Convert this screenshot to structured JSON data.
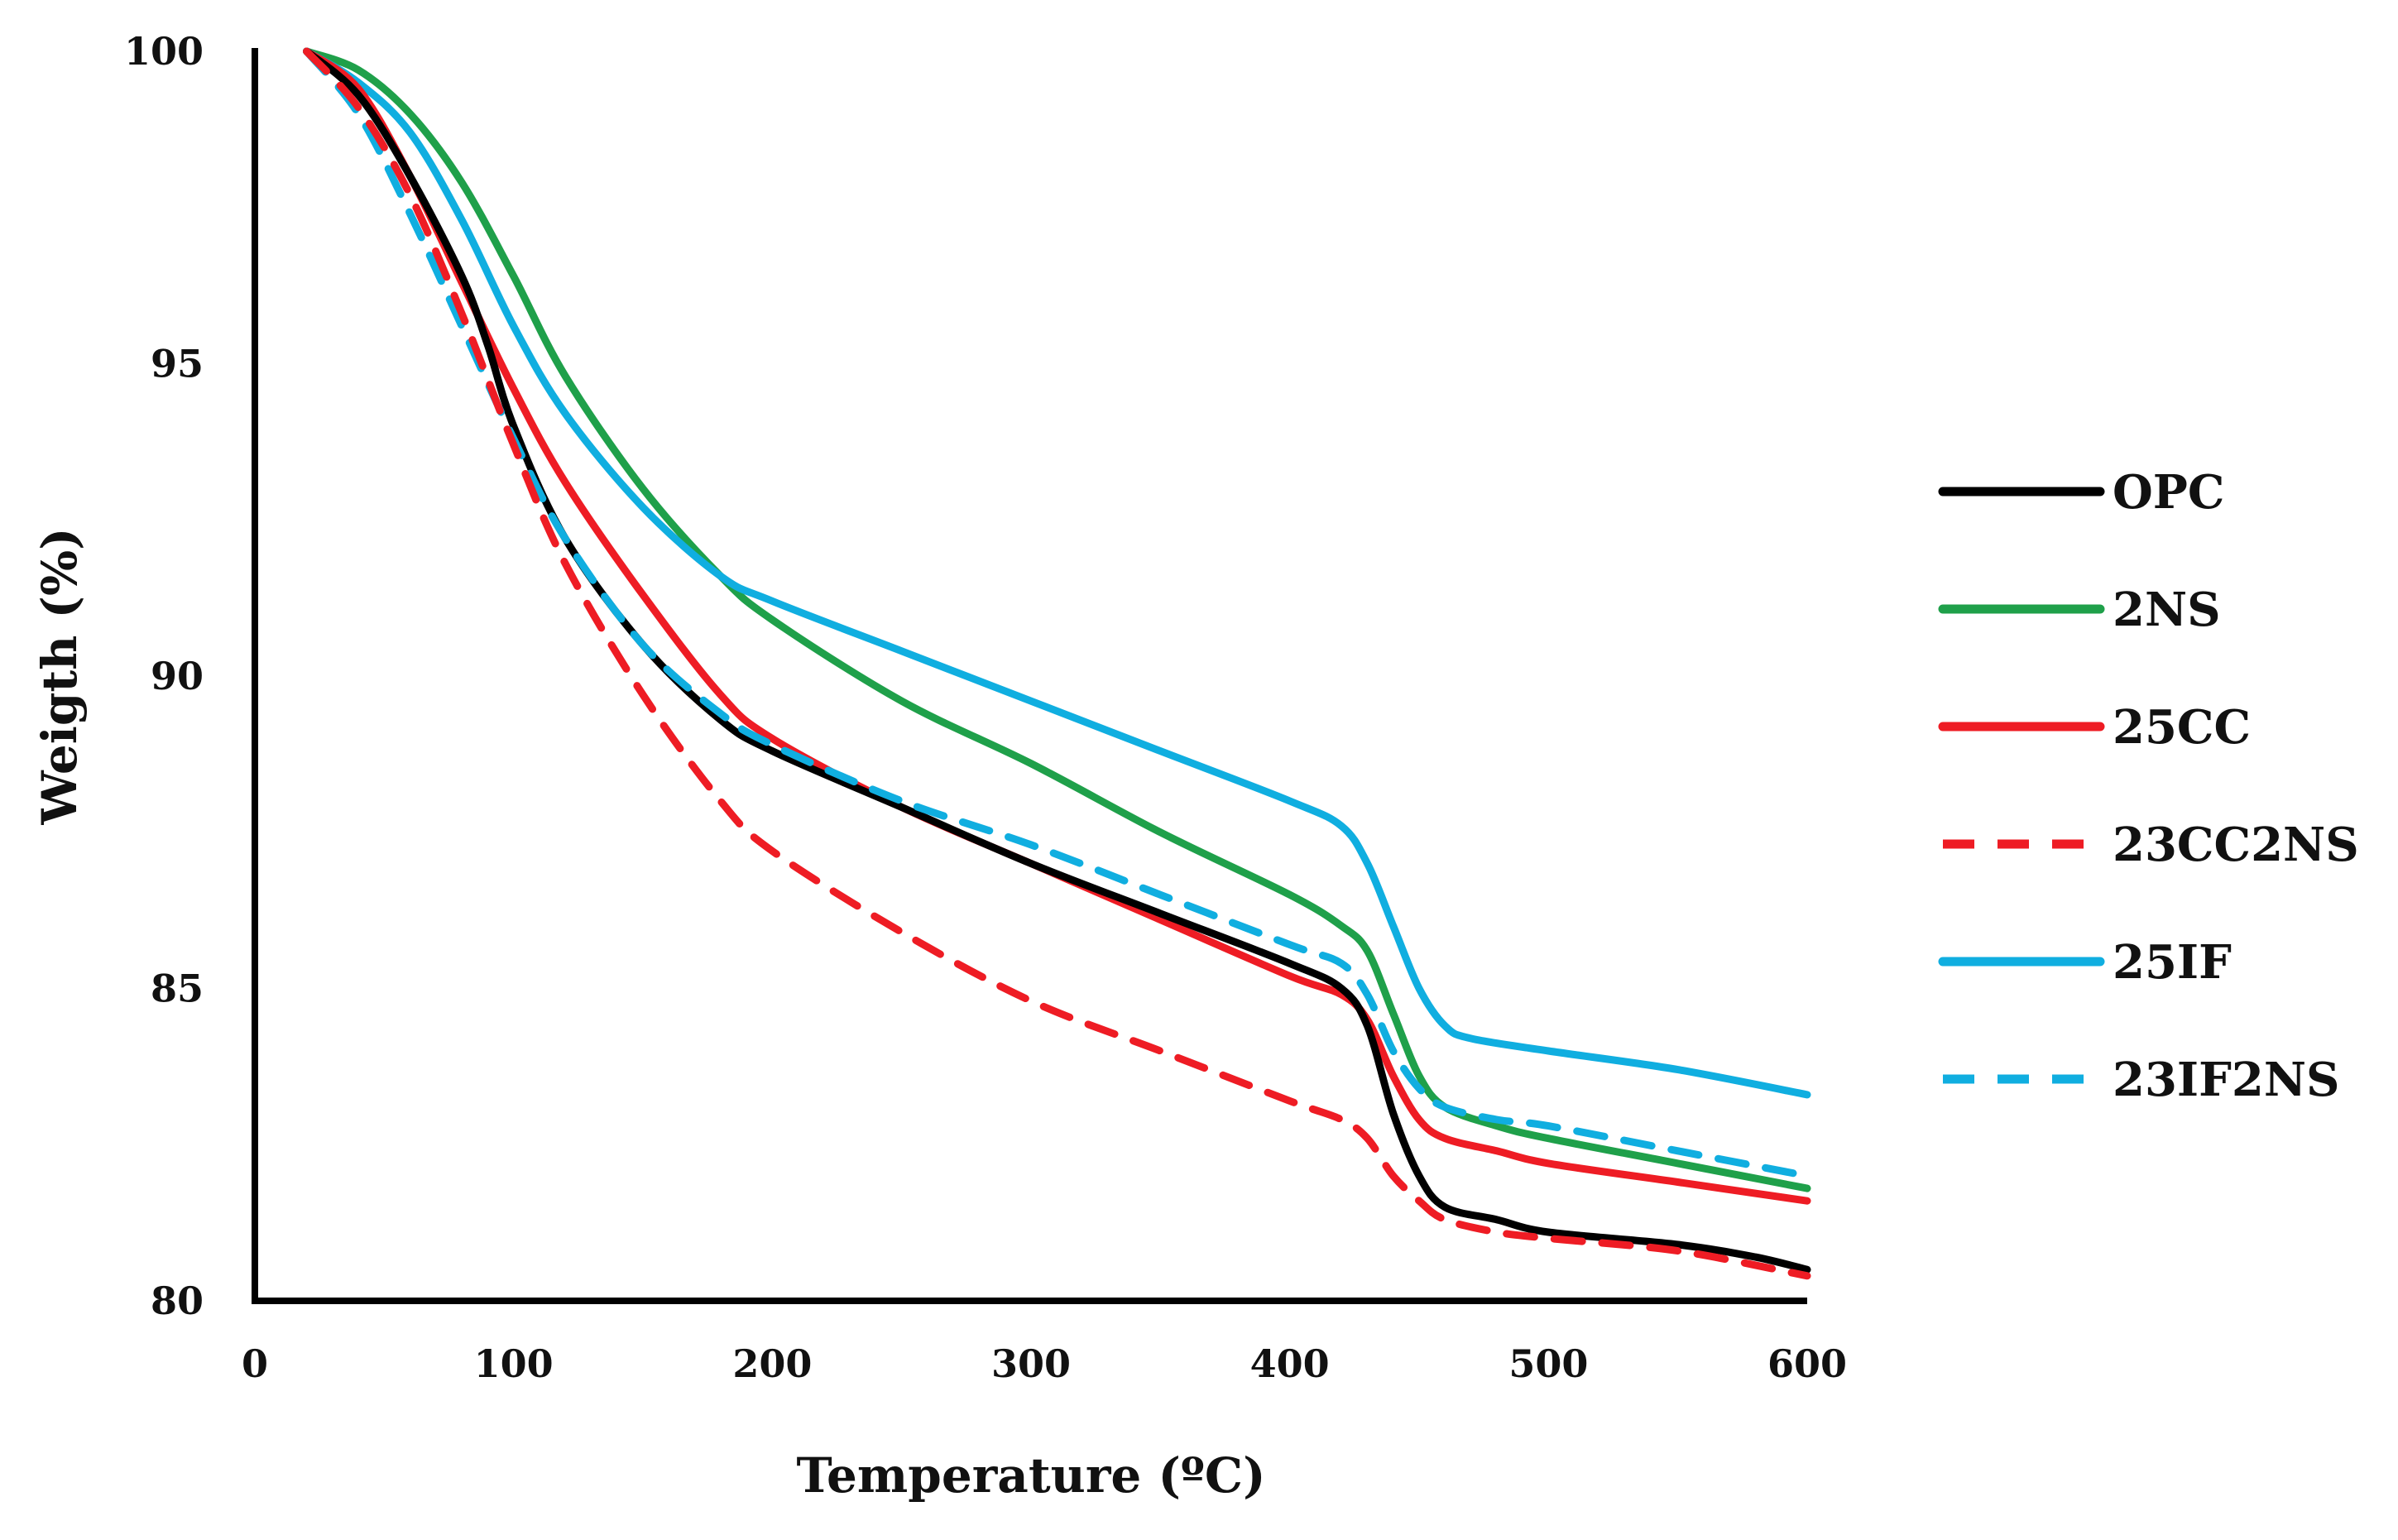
{
  "chart_data": {
    "type": "line",
    "title": "",
    "xlabel": "Temperature (ºC)",
    "ylabel": "Weigth (%)",
    "xlim": [
      0,
      600
    ],
    "ylim": [
      80,
      100
    ],
    "xticks": [
      "0",
      "100",
      "200",
      "300",
      "400",
      "500",
      "600"
    ],
    "yticks": [
      "80",
      "85",
      "90",
      "95",
      "100"
    ],
    "xtick_values": [
      0,
      100,
      200,
      300,
      400,
      500,
      600
    ],
    "ytick_values": [
      80,
      85,
      90,
      95,
      100
    ],
    "grid": false,
    "legend_position": "right",
    "series": [
      {
        "name": "OPC",
        "color": "#000000",
        "dash": "solid",
        "x": [
          20,
          40,
          60,
          80,
          90,
          100,
          120,
          150,
          180,
          200,
          250,
          300,
          350,
          400,
          420,
          430,
          440,
          450,
          460,
          480,
          500,
          550,
          580,
          600
        ],
        "y": [
          100,
          99.3,
          98.0,
          96.4,
          95.3,
          94.0,
          92.2,
          90.5,
          89.3,
          88.8,
          87.9,
          87.0,
          86.2,
          85.4,
          85.0,
          84.4,
          83.0,
          82.0,
          81.5,
          81.3,
          81.1,
          80.9,
          80.7,
          80.5
        ]
      },
      {
        "name": "2NS",
        "color": "#1fa04a",
        "dash": "solid",
        "x": [
          20,
          40,
          60,
          80,
          100,
          120,
          150,
          180,
          200,
          250,
          300,
          350,
          400,
          420,
          430,
          440,
          450,
          460,
          480,
          500,
          550,
          600
        ],
        "y": [
          100,
          99.7,
          99.0,
          97.9,
          96.4,
          94.8,
          93.0,
          91.6,
          90.9,
          89.6,
          88.6,
          87.5,
          86.5,
          86.0,
          85.6,
          84.6,
          83.6,
          83.1,
          82.8,
          82.6,
          82.2,
          81.8
        ]
      },
      {
        "name": "25CC",
        "color": "#ee1c24",
        "dash": "solid",
        "x": [
          20,
          40,
          60,
          80,
          100,
          120,
          150,
          180,
          200,
          250,
          300,
          350,
          400,
          420,
          430,
          440,
          450,
          460,
          480,
          500,
          550,
          600
        ],
        "y": [
          100,
          99.4,
          98.0,
          96.3,
          94.6,
          93.1,
          91.3,
          89.7,
          89.0,
          87.9,
          87.0,
          86.1,
          85.2,
          84.9,
          84.5,
          83.6,
          82.9,
          82.6,
          82.4,
          82.2,
          81.9,
          81.6
        ]
      },
      {
        "name": "23CC2NS",
        "color": "#ee1c24",
        "dash": "dashed",
        "x": [
          20,
          40,
          60,
          80,
          100,
          120,
          150,
          180,
          200,
          250,
          300,
          350,
          400,
          420,
          430,
          440,
          450,
          460,
          480,
          500,
          550,
          600
        ],
        "y": [
          100,
          99.1,
          97.7,
          95.8,
          93.7,
          91.8,
          89.7,
          88.0,
          87.2,
          85.9,
          84.8,
          84.0,
          83.2,
          82.9,
          82.6,
          82.0,
          81.6,
          81.3,
          81.1,
          81.0,
          80.8,
          80.4
        ]
      },
      {
        "name": "25IF",
        "color": "#10aee0",
        "dash": "solid",
        "x": [
          20,
          40,
          60,
          80,
          100,
          120,
          150,
          180,
          200,
          250,
          300,
          350,
          400,
          420,
          430,
          440,
          450,
          460,
          470,
          500,
          550,
          600
        ],
        "y": [
          100,
          99.5,
          98.7,
          97.3,
          95.6,
          94.2,
          92.7,
          91.6,
          91.2,
          90.4,
          89.6,
          88.8,
          88.0,
          87.6,
          87.0,
          86.0,
          85.0,
          84.4,
          84.2,
          84.0,
          83.7,
          83.3
        ]
      },
      {
        "name": "23IF2NS",
        "color": "#10aee0",
        "dash": "dashed",
        "x": [
          20,
          40,
          60,
          80,
          100,
          120,
          150,
          180,
          200,
          250,
          300,
          350,
          400,
          420,
          430,
          440,
          450,
          460,
          480,
          500,
          550,
          600
        ],
        "y": [
          100,
          99.0,
          97.4,
          95.6,
          93.8,
          92.2,
          90.5,
          89.4,
          88.9,
          88.0,
          87.3,
          86.5,
          85.7,
          85.4,
          84.9,
          84.0,
          83.4,
          83.1,
          82.9,
          82.8,
          82.4,
          82.0
        ]
      }
    ]
  }
}
